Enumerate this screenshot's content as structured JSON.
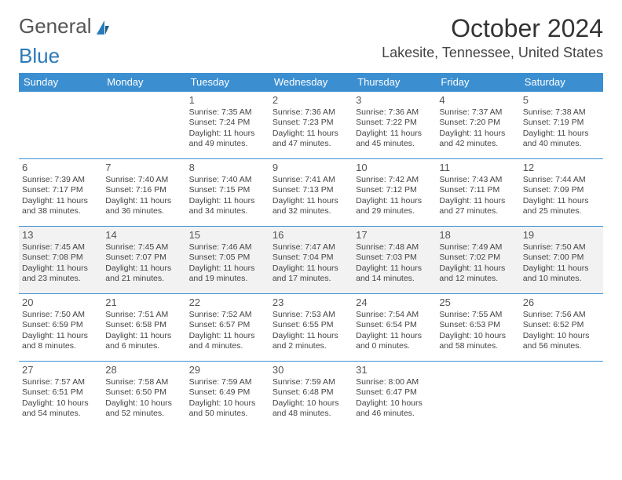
{
  "logo": {
    "general": "General",
    "blue": "Blue"
  },
  "header": {
    "month_title": "October 2024",
    "location": "Lakesite, Tennessee, United States"
  },
  "colors": {
    "header_bg": "#3b8fd0",
    "header_text": "#ffffff",
    "border": "#3b8fd0",
    "shade": "#f2f2f2",
    "logo_blue": "#2a7ab8"
  },
  "day_names": [
    "Sunday",
    "Monday",
    "Tuesday",
    "Wednesday",
    "Thursday",
    "Friday",
    "Saturday"
  ],
  "weeks": [
    {
      "shaded": false,
      "days": [
        null,
        null,
        {
          "n": "1",
          "sr": "Sunrise: 7:35 AM",
          "ss": "Sunset: 7:24 PM",
          "dl": "Daylight: 11 hours and 49 minutes."
        },
        {
          "n": "2",
          "sr": "Sunrise: 7:36 AM",
          "ss": "Sunset: 7:23 PM",
          "dl": "Daylight: 11 hours and 47 minutes."
        },
        {
          "n": "3",
          "sr": "Sunrise: 7:36 AM",
          "ss": "Sunset: 7:22 PM",
          "dl": "Daylight: 11 hours and 45 minutes."
        },
        {
          "n": "4",
          "sr": "Sunrise: 7:37 AM",
          "ss": "Sunset: 7:20 PM",
          "dl": "Daylight: 11 hours and 42 minutes."
        },
        {
          "n": "5",
          "sr": "Sunrise: 7:38 AM",
          "ss": "Sunset: 7:19 PM",
          "dl": "Daylight: 11 hours and 40 minutes."
        }
      ]
    },
    {
      "shaded": false,
      "days": [
        {
          "n": "6",
          "sr": "Sunrise: 7:39 AM",
          "ss": "Sunset: 7:17 PM",
          "dl": "Daylight: 11 hours and 38 minutes."
        },
        {
          "n": "7",
          "sr": "Sunrise: 7:40 AM",
          "ss": "Sunset: 7:16 PM",
          "dl": "Daylight: 11 hours and 36 minutes."
        },
        {
          "n": "8",
          "sr": "Sunrise: 7:40 AM",
          "ss": "Sunset: 7:15 PM",
          "dl": "Daylight: 11 hours and 34 minutes."
        },
        {
          "n": "9",
          "sr": "Sunrise: 7:41 AM",
          "ss": "Sunset: 7:13 PM",
          "dl": "Daylight: 11 hours and 32 minutes."
        },
        {
          "n": "10",
          "sr": "Sunrise: 7:42 AM",
          "ss": "Sunset: 7:12 PM",
          "dl": "Daylight: 11 hours and 29 minutes."
        },
        {
          "n": "11",
          "sr": "Sunrise: 7:43 AM",
          "ss": "Sunset: 7:11 PM",
          "dl": "Daylight: 11 hours and 27 minutes."
        },
        {
          "n": "12",
          "sr": "Sunrise: 7:44 AM",
          "ss": "Sunset: 7:09 PM",
          "dl": "Daylight: 11 hours and 25 minutes."
        }
      ]
    },
    {
      "shaded": true,
      "days": [
        {
          "n": "13",
          "sr": "Sunrise: 7:45 AM",
          "ss": "Sunset: 7:08 PM",
          "dl": "Daylight: 11 hours and 23 minutes."
        },
        {
          "n": "14",
          "sr": "Sunrise: 7:45 AM",
          "ss": "Sunset: 7:07 PM",
          "dl": "Daylight: 11 hours and 21 minutes."
        },
        {
          "n": "15",
          "sr": "Sunrise: 7:46 AM",
          "ss": "Sunset: 7:05 PM",
          "dl": "Daylight: 11 hours and 19 minutes."
        },
        {
          "n": "16",
          "sr": "Sunrise: 7:47 AM",
          "ss": "Sunset: 7:04 PM",
          "dl": "Daylight: 11 hours and 17 minutes."
        },
        {
          "n": "17",
          "sr": "Sunrise: 7:48 AM",
          "ss": "Sunset: 7:03 PM",
          "dl": "Daylight: 11 hours and 14 minutes."
        },
        {
          "n": "18",
          "sr": "Sunrise: 7:49 AM",
          "ss": "Sunset: 7:02 PM",
          "dl": "Daylight: 11 hours and 12 minutes."
        },
        {
          "n": "19",
          "sr": "Sunrise: 7:50 AM",
          "ss": "Sunset: 7:00 PM",
          "dl": "Daylight: 11 hours and 10 minutes."
        }
      ]
    },
    {
      "shaded": false,
      "days": [
        {
          "n": "20",
          "sr": "Sunrise: 7:50 AM",
          "ss": "Sunset: 6:59 PM",
          "dl": "Daylight: 11 hours and 8 minutes."
        },
        {
          "n": "21",
          "sr": "Sunrise: 7:51 AM",
          "ss": "Sunset: 6:58 PM",
          "dl": "Daylight: 11 hours and 6 minutes."
        },
        {
          "n": "22",
          "sr": "Sunrise: 7:52 AM",
          "ss": "Sunset: 6:57 PM",
          "dl": "Daylight: 11 hours and 4 minutes."
        },
        {
          "n": "23",
          "sr": "Sunrise: 7:53 AM",
          "ss": "Sunset: 6:55 PM",
          "dl": "Daylight: 11 hours and 2 minutes."
        },
        {
          "n": "24",
          "sr": "Sunrise: 7:54 AM",
          "ss": "Sunset: 6:54 PM",
          "dl": "Daylight: 11 hours and 0 minutes."
        },
        {
          "n": "25",
          "sr": "Sunrise: 7:55 AM",
          "ss": "Sunset: 6:53 PM",
          "dl": "Daylight: 10 hours and 58 minutes."
        },
        {
          "n": "26",
          "sr": "Sunrise: 7:56 AM",
          "ss": "Sunset: 6:52 PM",
          "dl": "Daylight: 10 hours and 56 minutes."
        }
      ]
    },
    {
      "shaded": false,
      "days": [
        {
          "n": "27",
          "sr": "Sunrise: 7:57 AM",
          "ss": "Sunset: 6:51 PM",
          "dl": "Daylight: 10 hours and 54 minutes."
        },
        {
          "n": "28",
          "sr": "Sunrise: 7:58 AM",
          "ss": "Sunset: 6:50 PM",
          "dl": "Daylight: 10 hours and 52 minutes."
        },
        {
          "n": "29",
          "sr": "Sunrise: 7:59 AM",
          "ss": "Sunset: 6:49 PM",
          "dl": "Daylight: 10 hours and 50 minutes."
        },
        {
          "n": "30",
          "sr": "Sunrise: 7:59 AM",
          "ss": "Sunset: 6:48 PM",
          "dl": "Daylight: 10 hours and 48 minutes."
        },
        {
          "n": "31",
          "sr": "Sunrise: 8:00 AM",
          "ss": "Sunset: 6:47 PM",
          "dl": "Daylight: 10 hours and 46 minutes."
        },
        null,
        null
      ]
    }
  ]
}
